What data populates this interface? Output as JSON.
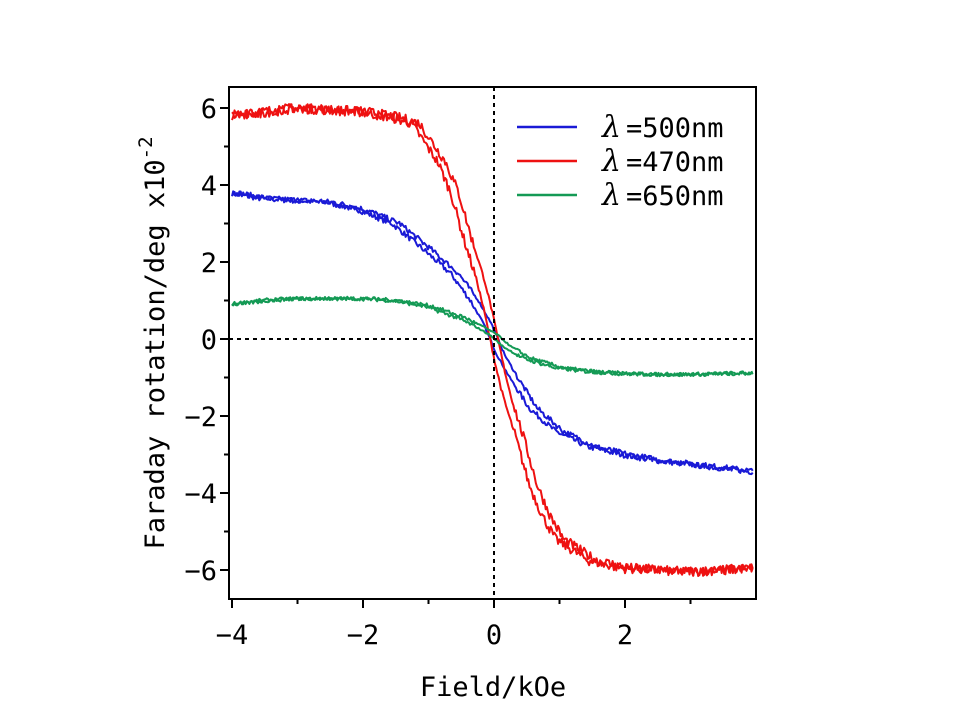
{
  "chart_data": {
    "type": "line",
    "title": "",
    "xlabel": "Field/kOe",
    "ylabel": "Faraday rotation/deg x10",
    "ylabel_exponent": "-2",
    "xlim": [
      -4,
      4
    ],
    "ylim": [
      -6.8,
      6.6
    ],
    "x_ticks": [
      -4,
      -2,
      0,
      2
    ],
    "y_ticks": [
      6,
      4,
      2,
      0,
      -2,
      -4,
      -6
    ],
    "x_tick_labels": [
      "−4",
      "−2",
      "0",
      "2"
    ],
    "y_tick_labels": [
      "6",
      "4",
      "2",
      "0",
      "−2",
      "−4",
      "−6"
    ],
    "grid": false,
    "zero_lines": "dotted",
    "legend_position": "top-right",
    "legend_symbol": "λ",
    "series": [
      {
        "name": "=500nm",
        "color": "#1a1ad6",
        "loop": true,
        "x": [
          -4.0,
          -3.5,
          -3.0,
          -2.5,
          -2.0,
          -1.5,
          -1.0,
          -0.6,
          -0.3,
          -0.1,
          0.0,
          0.1,
          0.3,
          0.6,
          1.0,
          1.5,
          2.0,
          2.5,
          3.0,
          3.5,
          4.0
        ],
        "values": [
          3.8,
          3.65,
          3.6,
          3.55,
          3.35,
          3.0,
          2.3,
          1.7,
          1.0,
          0.4,
          0.0,
          -0.4,
          -1.0,
          -1.8,
          -2.4,
          -2.8,
          -3.0,
          -3.15,
          -3.25,
          -3.35,
          -3.45
        ]
      },
      {
        "name": "=470nm",
        "color": "#ee1111",
        "loop": true,
        "x": [
          -4.0,
          -3.5,
          -3.0,
          -2.5,
          -2.0,
          -1.5,
          -1.2,
          -1.0,
          -0.8,
          -0.6,
          -0.4,
          -0.2,
          -0.1,
          0.0,
          0.1,
          0.2,
          0.4,
          0.6,
          0.8,
          1.0,
          1.5,
          2.0,
          2.5,
          3.0,
          3.5,
          4.0
        ],
        "values": [
          5.8,
          5.9,
          6.0,
          5.95,
          5.9,
          5.75,
          5.6,
          5.1,
          4.6,
          3.8,
          2.6,
          1.5,
          0.8,
          0.0,
          -0.8,
          -1.5,
          -2.6,
          -3.8,
          -4.6,
          -5.2,
          -5.75,
          -5.95,
          -6.0,
          -6.05,
          -6.0,
          -5.95
        ]
      },
      {
        "name": "=650nm",
        "color": "#149a55",
        "loop": true,
        "x": [
          -4.0,
          -3.5,
          -3.0,
          -2.5,
          -2.0,
          -1.5,
          -1.0,
          -0.5,
          -0.2,
          0.0,
          0.2,
          0.5,
          1.0,
          1.5,
          2.0,
          2.5,
          3.0,
          3.5,
          4.0
        ],
        "values": [
          0.9,
          1.0,
          1.05,
          1.05,
          1.05,
          1.0,
          0.85,
          0.55,
          0.3,
          0.1,
          -0.2,
          -0.5,
          -0.75,
          -0.85,
          -0.9,
          -0.92,
          -0.92,
          -0.9,
          -0.88
        ]
      }
    ]
  }
}
